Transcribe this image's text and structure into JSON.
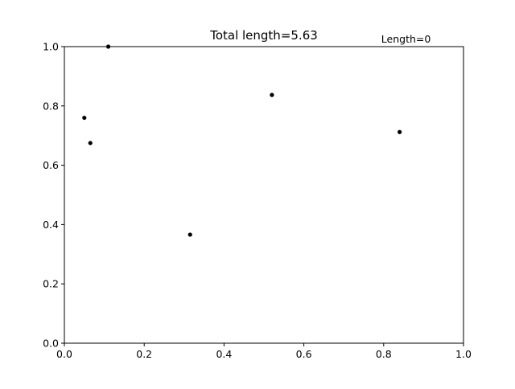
{
  "chart_data": {
    "type": "scatter",
    "title": "Total length=5.63",
    "annotation": "Length=0",
    "xlabel": "",
    "ylabel": "",
    "xlim": [
      0.0,
      1.0
    ],
    "ylim": [
      0.0,
      1.0
    ],
    "x_ticks": [
      0.0,
      0.2,
      0.4,
      0.6,
      0.8,
      1.0
    ],
    "y_ticks": [
      0.0,
      0.2,
      0.4,
      0.6,
      0.8,
      1.0
    ],
    "x_tick_labels": [
      "0.0",
      "0.2",
      "0.4",
      "0.6",
      "0.8",
      "1.0"
    ],
    "y_tick_labels": [
      "0.0",
      "0.2",
      "0.4",
      "0.6",
      "0.8",
      "1.0"
    ],
    "grid": false,
    "marker_color": "#000000",
    "points": [
      {
        "x": 0.11,
        "y": 1.0
      },
      {
        "x": 0.05,
        "y": 0.76
      },
      {
        "x": 0.065,
        "y": 0.675
      },
      {
        "x": 0.52,
        "y": 0.837
      },
      {
        "x": 0.84,
        "y": 0.712
      },
      {
        "x": 0.315,
        "y": 0.366
      }
    ]
  }
}
